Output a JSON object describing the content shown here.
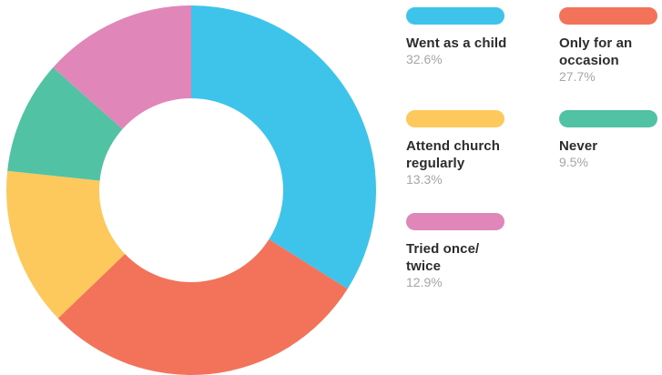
{
  "chart_data": {
    "type": "pie",
    "donut": true,
    "title": "",
    "slices": [
      {
        "label": "Went as a child",
        "value": 32.6,
        "value_label": "32.6%",
        "color": "#3ec4ea"
      },
      {
        "label": "Only for an\noccasion",
        "value": 27.7,
        "value_label": "27.7%",
        "color": "#f2735a"
      },
      {
        "label": "Attend church\nregularly",
        "value": 13.3,
        "value_label": "13.3%",
        "color": "#fec95c"
      },
      {
        "label": "Never",
        "value": 9.5,
        "value_label": "9.5%",
        "color": "#52c2a4"
      },
      {
        "label": "Tried once/\ntwice",
        "value": 12.9,
        "value_label": "12.9%",
        "color": "#e086b9"
      }
    ],
    "draw_order": [
      0,
      1,
      2,
      3,
      4
    ],
    "legend_placement": "right"
  }
}
